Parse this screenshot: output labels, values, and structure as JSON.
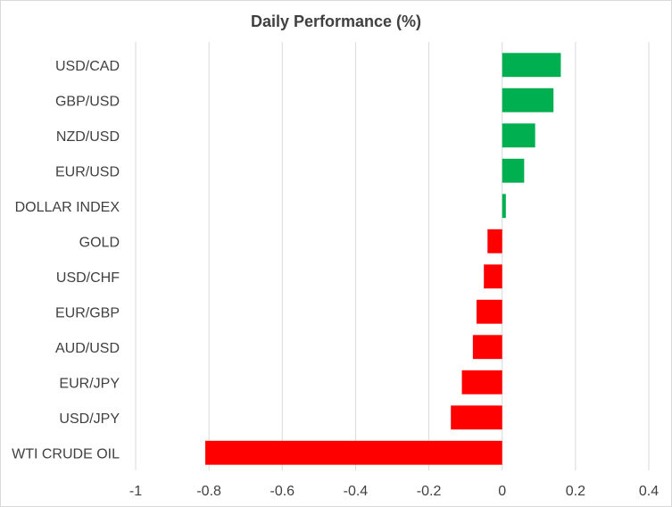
{
  "chart_data": {
    "type": "bar",
    "orientation": "horizontal",
    "title": "Daily Performance (%)",
    "categories": [
      "USD/CAD",
      "GBP/USD",
      "NZD/USD",
      "EUR/USD",
      "DOLLAR INDEX",
      "GOLD",
      "USD/CHF",
      "EUR/GBP",
      "AUD/USD",
      "EUR/JPY",
      "USD/JPY",
      "WTI CRUDE OIL"
    ],
    "values": [
      0.16,
      0.14,
      0.09,
      0.06,
      0.01,
      -0.04,
      -0.05,
      -0.07,
      -0.08,
      -0.11,
      -0.14,
      -0.81
    ],
    "xlim": [
      -1,
      0.4
    ],
    "xticks": [
      "-1",
      "-0.8",
      "-0.6",
      "-0.4",
      "-0.2",
      "0",
      "0.2",
      "0.4"
    ],
    "xtick_values": [
      -1,
      -0.8,
      -0.6,
      -0.4,
      -0.2,
      0,
      0.2,
      0.4
    ],
    "grid": "vertical",
    "colors": {
      "positive": "#00b050",
      "negative": "#ff0000",
      "grid": "#d9d9d9",
      "text": "#404040"
    }
  }
}
